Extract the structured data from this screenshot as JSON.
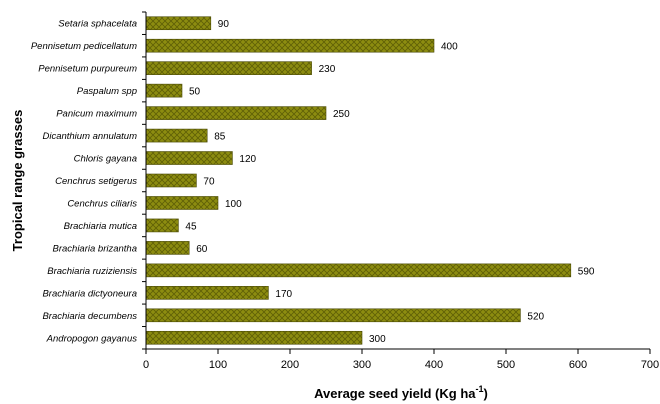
{
  "chart_data": {
    "type": "bar",
    "orientation": "horizontal",
    "categories": [
      "Setaria sphacelata",
      "Pennisetum pedicellatum",
      "Pennisetum purpureum",
      "Paspalum spp",
      "Panicum maximum",
      "Dicanthium annulatum",
      "Chloris gayana",
      "Cenchrus setigerus",
      "Cenchrus ciliaris",
      "Brachiaria mutica",
      "Brachiaria brizantha",
      "Brachiaria ruziziensis",
      "Brachiaria dictyoneura",
      "Brachiaria decumbens",
      "Andropogon gayanus"
    ],
    "values": [
      90,
      400,
      230,
      50,
      250,
      85,
      120,
      70,
      100,
      45,
      60,
      590,
      170,
      520,
      300
    ],
    "data_labels": [
      "90",
      "400",
      "230",
      "50",
      "250",
      "85",
      "120",
      "70",
      "100",
      "45",
      "60",
      "590",
      "170",
      "520",
      "300"
    ],
    "xlabel": "Average seed yield (Kg ha",
    "xlabel_superscript": "-1",
    "xlabel_close": ")",
    "ylabel": "Tropical range grasses",
    "xlim": [
      0,
      700
    ],
    "xticks": [
      "0",
      "100",
      "200",
      "300",
      "400",
      "500",
      "600",
      "700"
    ],
    "grid": false,
    "legend": "none",
    "colors": {
      "bar_fill": "#8c8c10",
      "bar_hatch": "#5e5e06",
      "bar_border": "#4a4a04"
    }
  }
}
